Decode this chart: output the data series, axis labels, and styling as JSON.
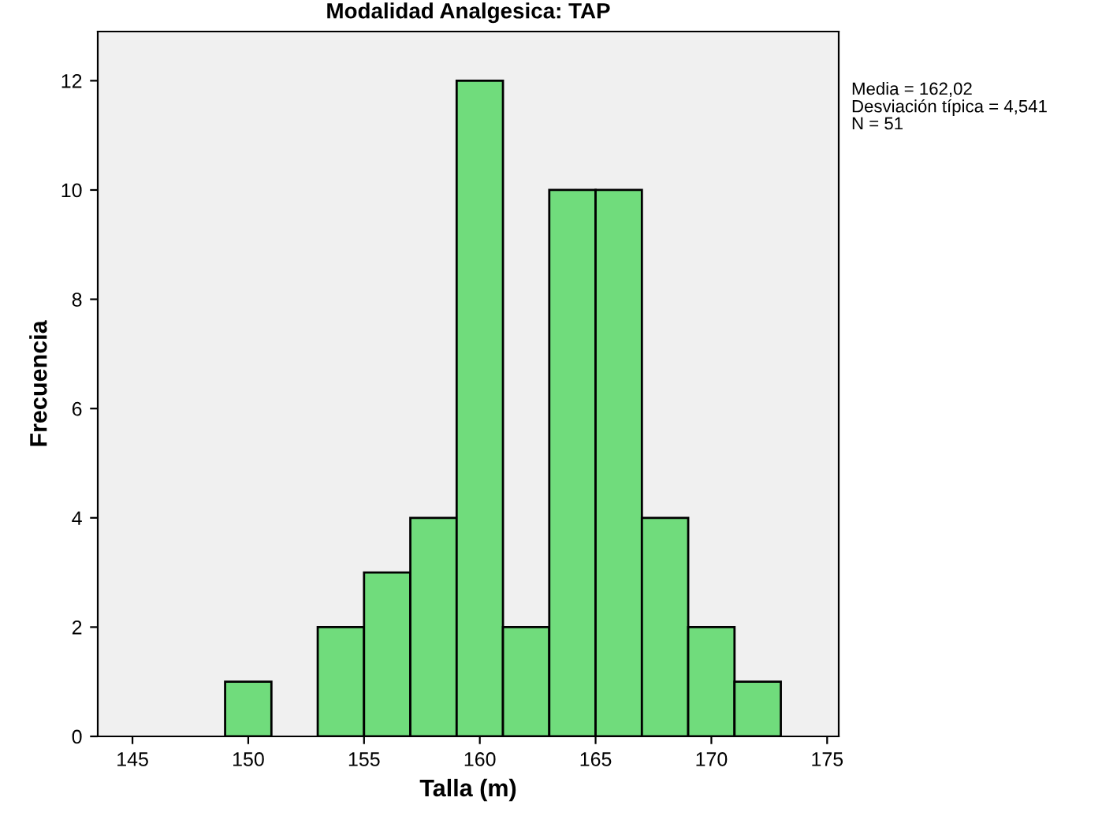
{
  "chart_data": {
    "type": "histogram",
    "title": "Modalidad Analgesica: TAP",
    "xlabel": "Talla (m)",
    "ylabel": "Frecuencia",
    "bins": [
      149,
      151,
      153,
      155,
      157,
      159,
      161,
      163,
      165,
      167,
      169,
      171,
      173
    ],
    "values": [
      1,
      0,
      2,
      3,
      4,
      12,
      2,
      10,
      10,
      4,
      2,
      1
    ],
    "color": "#70dc7c",
    "xlim": [
      143.5,
      175.5
    ],
    "xticks": [
      145,
      150,
      155,
      160,
      165,
      170,
      175
    ],
    "ylim": [
      0,
      12.9
    ],
    "yticks": [
      0,
      2,
      4,
      6,
      8,
      10,
      12
    ],
    "grid": false,
    "annotations": [
      "Media = 162,02",
      "Desviación típica = 4,541",
      "N = 51"
    ]
  }
}
